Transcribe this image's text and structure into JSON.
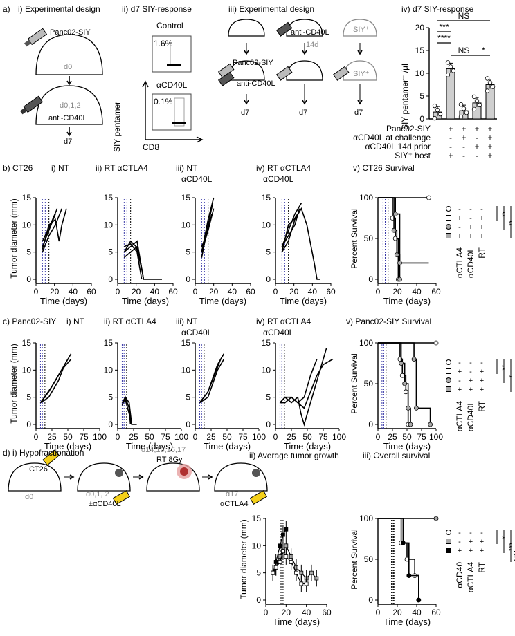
{
  "a": {
    "label": "a)",
    "i_title": "i) Experimental design",
    "ii_title": "ii) d7 SIY-response",
    "iii_title": "iii) Experimental design",
    "iv_title": "iv) d7 SIY-response",
    "panc02siy": "Panc02-SIY",
    "d0": "d0",
    "d012": "d0,1,2",
    "anti_cd40l": "anti-CD40L",
    "d7": "d7",
    "control": "Control",
    "control_pct": "1.6%",
    "acd40l": "αCD40L",
    "acd40l_pct": "0.1%",
    "ylab_flow": "SIY pentamer",
    "xlab_flow": "CD8",
    "d14": "14d",
    "siy_plus": "SIY⁺",
    "ylab_bar": "SIY pentamer⁺ /µl",
    "ns": "NS",
    "stars3": "***",
    "stars4": "****",
    "stars1": "*",
    "row_labels": [
      "Panc02-SIY",
      "αCD40L at challenge",
      "αCD40L 14d prior",
      "SIY⁺ host"
    ],
    "signs": [
      [
        "-",
        "+",
        "+",
        "+",
        "+"
      ],
      [
        "-",
        "-",
        "+",
        "-",
        "+"
      ],
      [
        "-",
        "-",
        "-",
        "+",
        "+"
      ],
      [
        "-",
        "+",
        "-",
        "-",
        "+"
      ]
    ],
    "bar_values": [
      1.5,
      11,
      1.8,
      3.5,
      7.5
    ],
    "y_ticks": [
      "0",
      "5",
      "10",
      "15",
      "20"
    ]
  },
  "b": {
    "label": "b) CT26",
    "p1": "i) NT",
    "p2": "ii) RT αCTLA4",
    "p3": "iii) NT",
    "p3b": "αCD40L",
    "p4": "iv) RT αCTLA4",
    "p4b": "αCD40L",
    "p5": "v) CT26 Survival",
    "ylab": "Tumor diameter (mm)",
    "xlab": "Time (days)",
    "surv_ylab": "Percent Survival",
    "yticks": [
      "0",
      "5",
      "10",
      "15"
    ],
    "xticks": [
      "0",
      "20",
      "40",
      "60"
    ],
    "sticks": [
      "0",
      "50",
      "100"
    ],
    "legend_rows": [
      "αCTLA4",
      "αCD40L",
      "RT"
    ],
    "legend_signs": [
      [
        "-",
        "-",
        "-"
      ],
      [
        "+",
        "-",
        "+"
      ],
      [
        "-",
        "+",
        "+"
      ],
      [
        "+",
        "+",
        "+"
      ]
    ],
    "sig": [
      "**",
      "**",
      "**",
      "NS"
    ]
  },
  "c": {
    "label": "c) Panc02-SIY",
    "p1": "i) NT",
    "p2": "ii) RT αCTLA4",
    "p3": "iii) NT",
    "p3b": "αCD40L",
    "p4": "iv) RT αCTLA4",
    "p4b": "αCD40L",
    "p5": "v) Panc02-SIY Survival",
    "ylab": "Tumor diameter (mm)",
    "xlab": "Time (days)",
    "surv_ylab": "Percent Survival",
    "yticks": [
      "0",
      "5",
      "10",
      "15"
    ],
    "xticks": [
      "0",
      "25",
      "50",
      "75",
      "100"
    ],
    "sticks": [
      "0",
      "50",
      "100"
    ],
    "legend_rows": [
      "αCTLA4",
      "αCD40L",
      "RT"
    ],
    "legend_signs": [
      [
        "-",
        "-",
        "-"
      ],
      [
        "+",
        "-",
        "+"
      ],
      [
        "-",
        "+",
        "+"
      ],
      [
        "+",
        "+",
        "+"
      ]
    ],
    "sig": [
      "**",
      "*",
      "**"
    ]
  },
  "d": {
    "label": "d) i) Hypofractionation",
    "ct26": "CT26",
    "d0": "d0",
    "d012": "d0,1, 2",
    "pm_cd40l": "±αCD40L",
    "days": "d14,15,16,17",
    "rt": "RT 8Gy",
    "d17": "d17",
    "actla4": "αCTLA4",
    "ii_title": "ii) Average tumor growth",
    "iii_title": "iii) Overall survival",
    "ylab": "Tumor diameter (mm)",
    "xlab": "Time (days)",
    "surv_ylab": "Percent Survival",
    "yticks": [
      "0",
      "5",
      "10",
      "15"
    ],
    "xticks": [
      "0",
      "20",
      "40",
      "60"
    ],
    "legend_rows": [
      "αCD40",
      "αCTLA4",
      "RT"
    ],
    "legend_signs": [
      [
        "-",
        "-",
        "-"
      ],
      [
        "-",
        "+",
        "+"
      ],
      [
        "+",
        "+",
        "+"
      ]
    ],
    "sig": [
      "*",
      "***",
      "NS"
    ]
  },
  "colors": {
    "yellow": "#f4d01a",
    "gray": "#cfcfcf",
    "blue_dash": "#3a3aa8",
    "red": "#c0392b"
  }
}
